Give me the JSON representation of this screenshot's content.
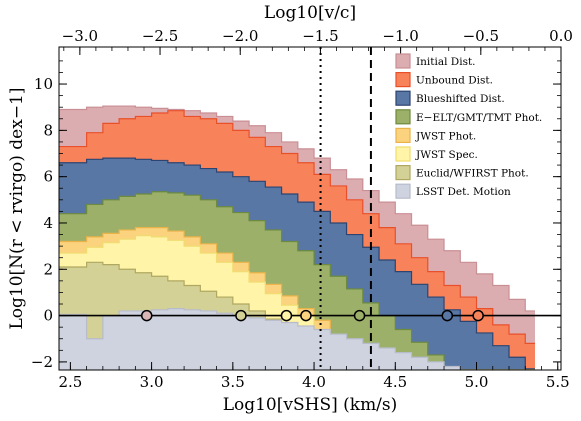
{
  "chart_data": {
    "type": "area",
    "title": "",
    "xlabel": "Log10[vSHS] (km/s)",
    "ylabel": "Log10[N(r < rvirgo) dex−1]",
    "top_xlabel": "Log10[v/c]",
    "xlim": [
      2.43,
      5.52
    ],
    "ylim": [
      -2.35,
      11.6
    ],
    "top_xlim": [
      -3.13,
      0.0
    ],
    "x_ticks": [
      2.5,
      3.0,
      3.5,
      4.0,
      4.5,
      5.0,
      5.5
    ],
    "x_tick_labels": [
      "2.5",
      "3.0",
      "3.5",
      "4.0",
      "4.5",
      "5.0",
      "5.5"
    ],
    "y_ticks": [
      -2,
      0,
      2,
      4,
      6,
      8,
      10
    ],
    "y_tick_labels": [
      "−2",
      "0",
      "2",
      "4",
      "6",
      "8",
      "10"
    ],
    "top_ticks": [
      -3.0,
      -2.5,
      -2.0,
      -1.5,
      -1.0,
      -0.5,
      0.0
    ],
    "top_tick_labels": [
      "−3.0",
      "−2.5",
      "−2.0",
      "−1.5",
      "−1.0",
      "−0.5",
      "0.0"
    ],
    "x_edges": [
      2.43,
      2.6,
      2.7,
      2.8,
      2.9,
      3.0,
      3.1,
      3.2,
      3.3,
      3.4,
      3.5,
      3.6,
      3.7,
      3.8,
      3.9,
      4.0,
      4.1,
      4.2,
      4.3,
      4.4,
      4.5,
      4.6,
      4.7,
      4.8,
      4.9,
      5.0,
      5.1,
      5.2,
      5.3,
      5.36
    ],
    "grid": false,
    "legend_position": "top-right",
    "baseline": -2.35,
    "series": [
      {
        "name": "Initial Dist.",
        "color": "#dcadb0",
        "edge": "#c98f94",
        "values": [
          8.9,
          9.0,
          9.05,
          9.05,
          9.0,
          8.95,
          8.9,
          8.85,
          8.75,
          8.6,
          8.4,
          8.2,
          7.9,
          7.5,
          7.2,
          6.8,
          6.3,
          5.9,
          5.4,
          4.9,
          4.4,
          3.9,
          3.3,
          2.8,
          2.3,
          1.8,
          1.3,
          0.7,
          0.2
        ]
      },
      {
        "name": "Unbound Dist.",
        "color": "#f8835b",
        "edge": "#e8502a",
        "values": [
          7.3,
          7.9,
          8.3,
          8.5,
          8.6,
          8.75,
          8.85,
          8.6,
          8.5,
          8.3,
          8.0,
          7.7,
          7.3,
          7.0,
          6.6,
          6.1,
          5.6,
          5.0,
          4.4,
          3.8,
          3.1,
          2.5,
          1.9,
          1.3,
          0.8,
          0.3,
          -0.4,
          -0.8,
          -1.2
        ]
      },
      {
        "name": "Blueshifted Dist.",
        "color": "#5977a4",
        "edge": "#2c4470",
        "values": [
          6.6,
          6.75,
          6.8,
          6.8,
          6.75,
          6.7,
          6.6,
          6.5,
          6.35,
          6.2,
          6.0,
          5.8,
          5.55,
          5.25,
          4.9,
          4.5,
          4.0,
          3.5,
          2.95,
          2.4,
          1.9,
          1.35,
          0.8,
          0.25,
          -0.25,
          -0.75,
          -1.3,
          -1.8,
          -2.3
        ]
      },
      {
        "name": "E−ELT/GMT/TMT Phot.",
        "color": "#9cb06a",
        "edge": "#6d8a3e",
        "values": [
          4.4,
          4.8,
          5.0,
          5.15,
          5.25,
          5.35,
          5.3,
          5.2,
          5.0,
          4.7,
          4.45,
          4.1,
          3.7,
          3.2,
          2.8,
          2.2,
          1.7,
          1.15,
          0.55,
          0.0,
          -0.6,
          -1.15,
          -1.7,
          -2.35,
          -2.35,
          -2.35,
          -2.35,
          -2.35,
          -2.35
        ]
      },
      {
        "name": "JWST Phot.",
        "color": "#fbd27e",
        "edge": "#e9b34a",
        "values": [
          3.2,
          3.4,
          3.55,
          3.7,
          3.8,
          3.8,
          3.65,
          3.4,
          3.1,
          2.7,
          2.3,
          1.85,
          1.35,
          0.85,
          0.3,
          -0.2,
          -0.85,
          -1.45,
          -2.1,
          -2.35,
          -2.35,
          -2.35,
          -2.35,
          -2.35,
          -2.35,
          -2.35,
          -2.35,
          -2.35,
          -2.35
        ]
      },
      {
        "name": "JWST Spec.",
        "color": "#fff4a8",
        "edge": "#f0dc70",
        "values": [
          2.7,
          2.95,
          3.15,
          3.3,
          3.45,
          3.4,
          3.25,
          3.0,
          2.7,
          2.3,
          1.9,
          1.45,
          0.95,
          0.45,
          0.0,
          -0.6,
          -1.2,
          -1.8,
          -2.35,
          -2.35,
          -2.35,
          -2.35,
          -2.35,
          -2.35,
          -2.35,
          -2.35,
          -2.35,
          -2.35,
          -2.35
        ]
      },
      {
        "name": "Euclid/WFIRST Phot.",
        "color": "#d4d197",
        "edge": "#b0a860",
        "values": [
          2.1,
          2.3,
          2.2,
          2.0,
          1.85,
          1.7,
          1.5,
          1.3,
          1.05,
          0.8,
          0.5,
          0.2,
          -0.15,
          -0.5,
          -0.95,
          -1.4,
          -1.95,
          -2.35,
          -2.35,
          -2.35,
          -2.35,
          -2.35,
          -2.35,
          -2.35,
          -2.35,
          -2.35,
          -2.35,
          -2.35,
          -2.35
        ]
      },
      {
        "name": "LSST Det. Motion",
        "color": "#cfd3e0",
        "edge": "#b7bccb",
        "values": [
          0.05,
          -1.0,
          0.0,
          0.2,
          0.2,
          0.25,
          0.3,
          0.25,
          0.2,
          0.1,
          0.0,
          -0.1,
          -0.2,
          -0.3,
          -0.45,
          -0.6,
          -0.8,
          -1.0,
          -1.2,
          -1.4,
          -1.6,
          -1.8,
          -2.0,
          -2.2,
          -2.35,
          -2.35,
          -2.35,
          -2.35,
          -2.35
        ]
      }
    ],
    "zero_line": {
      "y": 0
    },
    "vlines": [
      {
        "x": 4.04,
        "style": "dotted"
      },
      {
        "x": 4.35,
        "style": "dashed"
      }
    ],
    "markers": [
      {
        "x": 2.97,
        "y": 0,
        "fill": "#d9b5b5"
      },
      {
        "x": 3.55,
        "y": 0,
        "fill": "#d4d197"
      },
      {
        "x": 3.83,
        "y": 0,
        "fill": "#fff4a8"
      },
      {
        "x": 3.95,
        "y": 0,
        "fill": "#fbd27e"
      },
      {
        "x": 4.28,
        "y": 0,
        "fill": "#9cb06a"
      },
      {
        "x": 4.82,
        "y": 0,
        "fill": "#5977a4"
      },
      {
        "x": 5.01,
        "y": 0,
        "fill": "#f8835b"
      }
    ]
  }
}
